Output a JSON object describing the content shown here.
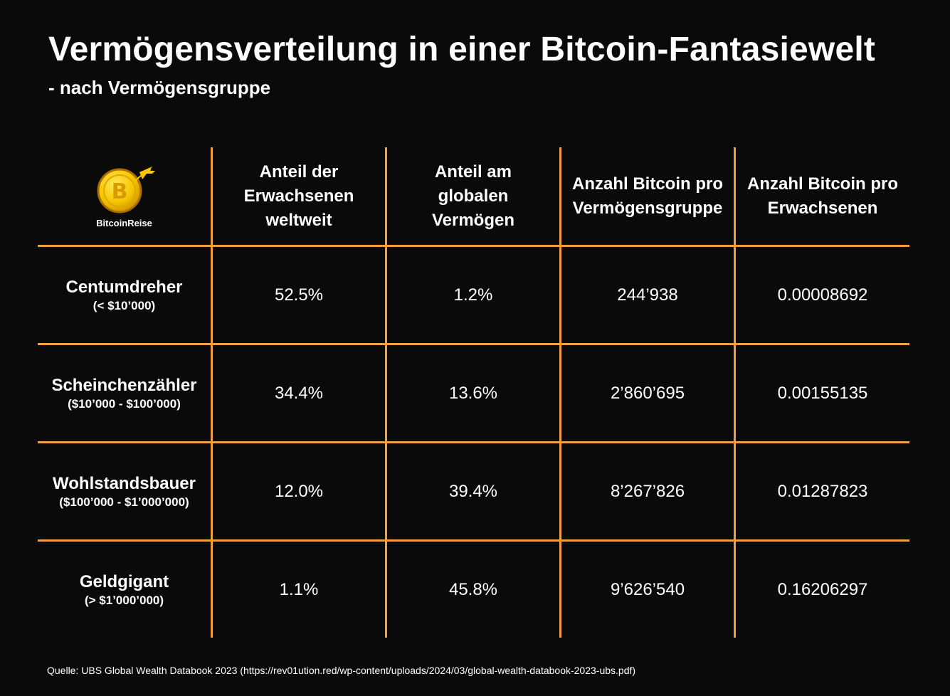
{
  "title": "Vermögensverteilung in einer Bitcoin-Fantasiewelt",
  "subtitle": "- nach Vermögensgruppe",
  "logo": {
    "text": "BitcoinReise",
    "coin_letter": "B",
    "accent_color": "#f7c600",
    "line_color": "#f0a040"
  },
  "headers": [
    "Anteil der\nErwachsenen\nweltweit",
    "Anteil am\nglobalen\nVermögen",
    "Anzahl Bitcoin pro\nVermögensgruppe",
    "Anzahl Bitcoin pro\nErwachsenen"
  ],
  "rows": [
    {
      "label": "Centumdreher",
      "range": "(< $10’000)",
      "values": [
        "52.5%",
        "1.2%",
        "244’938",
        "0.00008692"
      ]
    },
    {
      "label": "Scheinchenzähler",
      "range": "($10’000  - $100’000)",
      "values": [
        "34.4%",
        "13.6%",
        "2’860’695",
        "0.00155135"
      ]
    },
    {
      "label": "Wohlstandsbauer",
      "range": "($100’000  - $1’000’000)",
      "values": [
        "12.0%",
        "39.4%",
        "8’267’826",
        "0.01287823"
      ]
    },
    {
      "label": "Geldgigant",
      "range": "(> $1’000’000)",
      "values": [
        "1.1%",
        "45.8%",
        "9’626’540",
        "0.16206297"
      ]
    }
  ],
  "source": "Quelle: UBS Global Wealth Databook 2023 (https://rev01ution.red/wp-content/uploads/2024/03/global-wealth-databook-2023-ubs.pdf)"
}
